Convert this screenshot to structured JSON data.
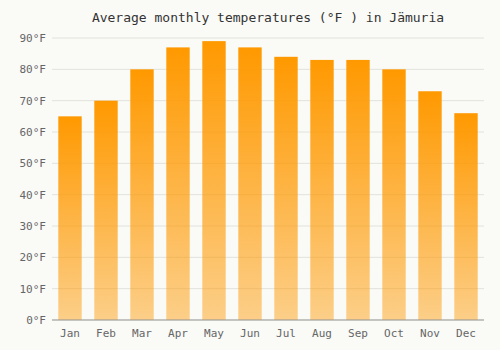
{
  "chart_data": {
    "type": "bar",
    "title": "Average monthly temperatures (°F ) in Jämuria",
    "categories": [
      "Jan",
      "Feb",
      "Mar",
      "Apr",
      "May",
      "Jun",
      "Jul",
      "Aug",
      "Sep",
      "Oct",
      "Nov",
      "Dec"
    ],
    "values": [
      65,
      70,
      80,
      87,
      89,
      87,
      84,
      83,
      83,
      80,
      73,
      66
    ],
    "color": "#FF9900",
    "ylim": [
      0,
      90
    ],
    "yticks": [
      {
        "value": 0,
        "label": "0°F"
      },
      {
        "value": 10,
        "label": "10°F"
      },
      {
        "value": 20,
        "label": "20°F"
      },
      {
        "value": 30,
        "label": "30°F"
      },
      {
        "value": 40,
        "label": "40°F"
      },
      {
        "value": 50,
        "label": "50°F"
      },
      {
        "value": 60,
        "label": "60°F"
      },
      {
        "value": 70,
        "label": "70°F"
      },
      {
        "value": 80,
        "label": "80°F"
      },
      {
        "value": 90,
        "label": "90°F"
      }
    ],
    "grid": true
  }
}
